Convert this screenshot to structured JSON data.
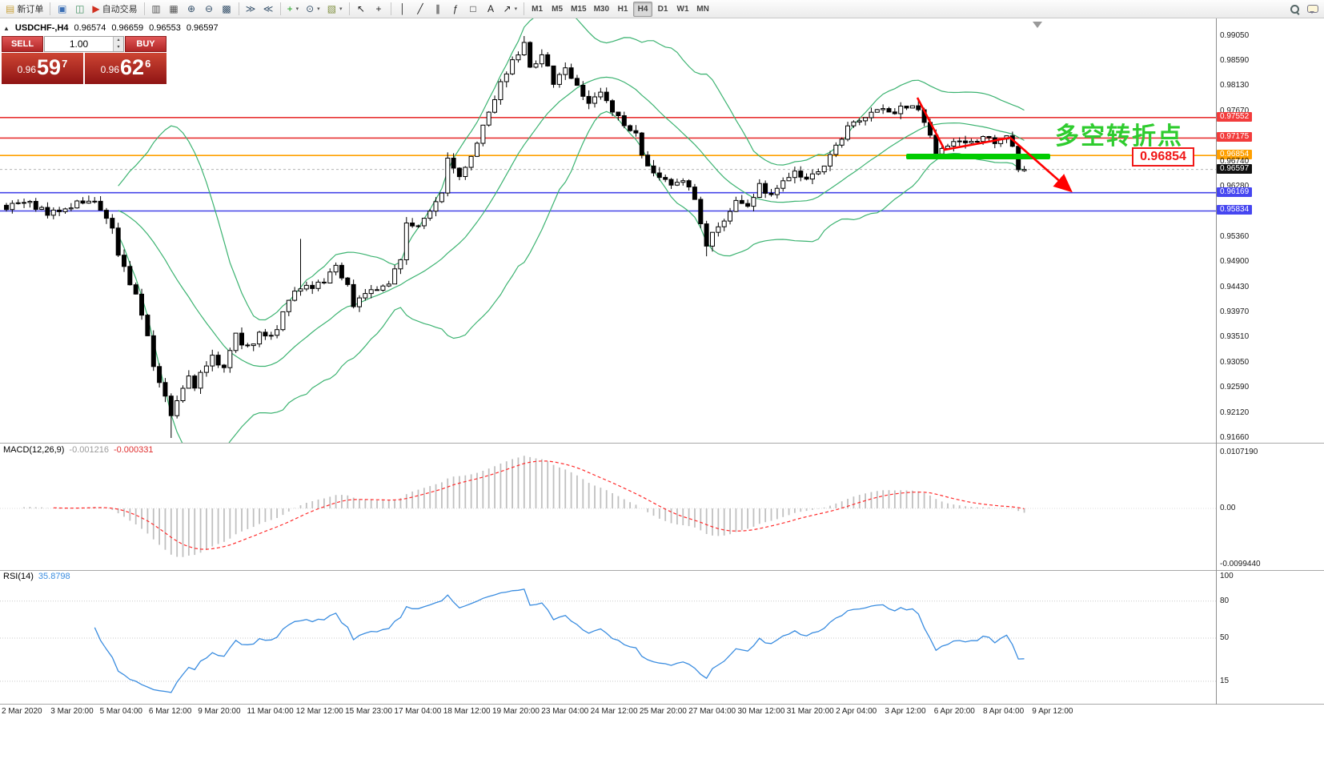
{
  "toolbar": {
    "dropdown_glyph": "▾",
    "items": [
      {
        "n": "new-order-button",
        "glyph": "▤",
        "glyph_color": "#c8a23c",
        "label": "新订单"
      },
      {
        "n": "separator"
      },
      {
        "n": "profiles-icon",
        "glyph": "▣",
        "glyph_color": "#3b6fb5"
      },
      {
        "n": "charts-stack-icon",
        "glyph": "◫",
        "glyph_color": "#3f8f5f"
      },
      {
        "n": "auto-trading-button",
        "glyph": "▶",
        "glyph_color": "#d03020",
        "label": "自动交易"
      },
      {
        "n": "separator"
      },
      {
        "n": "bars-style-icon",
        "glyph": "▥",
        "glyph_color": "#555555"
      },
      {
        "n": "candles-style-icon",
        "glyph": "▦",
        "glyph_color": "#555555"
      },
      {
        "n": "zoom-in-button",
        "glyph": "⊕",
        "glyph_color": "#35506a"
      },
      {
        "n": "zoom-out-button",
        "glyph": "⊖",
        "glyph_color": "#35506a"
      },
      {
        "n": "tile-windows-icon",
        "glyph": "▩",
        "glyph_color": "#35506a"
      },
      {
        "n": "separator"
      },
      {
        "n": "auto-scroll-icon",
        "glyph": "≫",
        "glyph_color": "#35506a"
      },
      {
        "n": "chart-shift-icon",
        "glyph": "≪",
        "glyph_color": "#35506a"
      },
      {
        "n": "separator"
      },
      {
        "n": "indicators-button",
        "glyph": "+",
        "glyph_color": "#18a018",
        "dropdown": true
      },
      {
        "n": "periods-button",
        "glyph": "⊙",
        "glyph_color": "#35506a",
        "dropdown": true
      },
      {
        "n": "templates-button",
        "glyph": "▧",
        "glyph_color": "#7f8f3f",
        "dropdown": true
      },
      {
        "n": "separator"
      },
      {
        "n": "cursor-icon",
        "glyph": "↖",
        "glyph_color": "#222222"
      },
      {
        "n": "crosshair-icon",
        "glyph": "+",
        "glyph_color": "#222222"
      },
      {
        "n": "separator"
      },
      {
        "n": "vertical-line-icon",
        "glyph": "│",
        "glyph_color": "#222222"
      },
      {
        "n": "trendline-icon",
        "glyph": "╱",
        "glyph_color": "#222222"
      },
      {
        "n": "equidistant-channel-icon",
        "glyph": "∥",
        "glyph_color": "#222222"
      },
      {
        "n": "fibonacci-icon",
        "glyph": "ƒ",
        "glyph_color": "#222222"
      },
      {
        "n": "shapes-icon",
        "glyph": "□",
        "glyph_color": "#222222"
      },
      {
        "n": "text-icon",
        "glyph": "A",
        "glyph_color": "#222222"
      },
      {
        "n": "arrows-icon",
        "glyph": "↗",
        "glyph_color": "#222222",
        "dropdown": true
      },
      {
        "n": "separator"
      },
      {
        "n": "timeframe-m1-button",
        "label": "M1",
        "tf": true
      },
      {
        "n": "timeframe-m5-button",
        "label": "M5",
        "tf": true
      },
      {
        "n": "timeframe-m15-button",
        "label": "M15",
        "tf": true
      },
      {
        "n": "timeframe-m30-button",
        "label": "M30",
        "tf": true
      },
      {
        "n": "timeframe-h1-button",
        "label": "H1",
        "tf": true
      },
      {
        "n": "timeframe-h4-button",
        "label": "H4",
        "tf": true,
        "active": true
      },
      {
        "n": "timeframe-d1-button",
        "label": "D1",
        "tf": true
      },
      {
        "n": "timeframe-w1-button",
        "label": "W1",
        "tf": true
      },
      {
        "n": "timeframe-mn-button",
        "label": "MN",
        "tf": true
      },
      {
        "n": "spacer"
      },
      {
        "n": "search-icon",
        "css_icon": "lens"
      },
      {
        "n": "chat-icon",
        "css_icon": "bubble"
      }
    ]
  },
  "symbol_header": {
    "collapse_glyph": "▲",
    "symbol": "USDCHF-,H4",
    "open": "0.96574",
    "high": "0.96659",
    "low": "0.96553",
    "close": "0.96597"
  },
  "trade_panel": {
    "sell_label": "SELL",
    "buy_label": "BUY",
    "lot": "1.00",
    "spin_up_glyph": "▴",
    "spin_down_glyph": "▾",
    "sell_price": {
      "prefix": "0.96",
      "big": "59",
      "sup": "7"
    },
    "buy_price": {
      "prefix": "0.96",
      "big": "62",
      "sup": "6"
    }
  },
  "annotations": {
    "turning_point_text": "多空转折点",
    "turning_point_color": "#2fcc2f",
    "price_callout": "0.96854",
    "callout_color": "#f01818",
    "highlight_line": {
      "x": 1132,
      "width": 180,
      "y": 169,
      "height": 7,
      "color": "#00cc00"
    },
    "red_arrow_path": [
      [
        1146,
        99
      ],
      [
        1180,
        164
      ],
      [
        1262,
        149
      ],
      [
        1336,
        214
      ]
    ],
    "red_arrow_color": "#ff0000"
  },
  "chart_data": {
    "type": "candlestick",
    "symbol": "USDCHF-",
    "timeframe": "H4",
    "current_bar": {
      "open": 0.96574,
      "high": 0.96659,
      "low": 0.96553,
      "close": 0.96597
    },
    "bid": 0.96597,
    "ask": 0.96626,
    "ylim": [
      0.9166,
      0.9905
    ],
    "bars": 174,
    "price_path": [
      [
        0,
        0.9592
      ],
      [
        3,
        0.9601
      ],
      [
        7,
        0.9578
      ],
      [
        11,
        0.9595
      ],
      [
        14,
        0.9604
      ],
      [
        16,
        0.9589
      ],
      [
        18,
        0.9552
      ],
      [
        19,
        0.9506
      ],
      [
        20,
        0.9475
      ],
      [
        21,
        0.9448
      ],
      [
        22,
        0.9424
      ],
      [
        24,
        0.936
      ],
      [
        25,
        0.93
      ],
      [
        26,
        0.9268
      ],
      [
        27,
        0.9245
      ],
      [
        28,
        0.9212
      ],
      [
        29,
        0.923
      ],
      [
        30,
        0.9258
      ],
      [
        31,
        0.9282
      ],
      [
        32,
        0.9262
      ],
      [
        33,
        0.9292
      ],
      [
        35,
        0.9312
      ],
      [
        37,
        0.93
      ],
      [
        39,
        0.9356
      ],
      [
        40,
        0.9342
      ],
      [
        42,
        0.9336
      ],
      [
        43,
        0.9358
      ],
      [
        45,
        0.9351
      ],
      [
        47,
        0.9392
      ],
      [
        48,
        0.9418
      ],
      [
        50,
        0.9445
      ],
      [
        52,
        0.944
      ],
      [
        54,
        0.9456
      ],
      [
        56,
        0.9478
      ],
      [
        58,
        0.9442
      ],
      [
        59,
        0.9402
      ],
      [
        60,
        0.9418
      ],
      [
        63,
        0.9441
      ],
      [
        65,
        0.9452
      ],
      [
        67,
        0.95
      ],
      [
        68,
        0.9558
      ],
      [
        70,
        0.9561
      ],
      [
        72,
        0.9589
      ],
      [
        74,
        0.9621
      ],
      [
        75,
        0.9676
      ],
      [
        77,
        0.9652
      ],
      [
        78,
        0.9668
      ],
      [
        80,
        0.9708
      ],
      [
        82,
        0.9762
      ],
      [
        84,
        0.9818
      ],
      [
        86,
        0.9862
      ],
      [
        88,
        0.989
      ],
      [
        89,
        0.9845
      ],
      [
        91,
        0.9868
      ],
      [
        93,
        0.9822
      ],
      [
        95,
        0.9841
      ],
      [
        97,
        0.9812
      ],
      [
        99,
        0.9782
      ],
      [
        101,
        0.9798
      ],
      [
        103,
        0.977
      ],
      [
        105,
        0.9742
      ],
      [
        107,
        0.9721
      ],
      [
        109,
        0.9664
      ],
      [
        111,
        0.9641
      ],
      [
        113,
        0.9632
      ],
      [
        115,
        0.9645
      ],
      [
        117,
        0.9601
      ],
      [
        119,
        0.9523
      ],
      [
        120,
        0.9548
      ],
      [
        122,
        0.9562
      ],
      [
        124,
        0.96
      ],
      [
        126,
        0.9592
      ],
      [
        128,
        0.9628
      ],
      [
        130,
        0.9612
      ],
      [
        132,
        0.9641
      ],
      [
        134,
        0.9652
      ],
      [
        136,
        0.9642
      ],
      [
        138,
        0.9661
      ],
      [
        140,
        0.9682
      ],
      [
        142,
        0.9718
      ],
      [
        144,
        0.9749
      ],
      [
        146,
        0.976
      ],
      [
        148,
        0.9772
      ],
      [
        150,
        0.9762
      ],
      [
        152,
        0.9771
      ],
      [
        154,
        0.9781
      ],
      [
        156,
        0.9748
      ],
      [
        157,
        0.9718
      ],
      [
        158,
        0.9691
      ],
      [
        160,
        0.9699
      ],
      [
        162,
        0.9712
      ],
      [
        164,
        0.9706
      ],
      [
        166,
        0.9716
      ],
      [
        168,
        0.9709
      ],
      [
        170,
        0.9721
      ],
      [
        171,
        0.9699
      ],
      [
        172,
        0.9663
      ],
      [
        173,
        0.96597
      ]
    ],
    "extremes": [
      {
        "bar": 28,
        "low": 0.9166
      },
      {
        "bar": 50,
        "high": 0.9532
      },
      {
        "bar": 88,
        "high": 0.9905
      },
      {
        "bar": 119,
        "low": 0.95
      },
      {
        "bar": 173,
        "o": 0.96574,
        "h": 0.96659,
        "l": 0.96553,
        "c": 0.96597
      }
    ],
    "levels": [
      {
        "price": 0.97552,
        "color": "red"
      },
      {
        "price": 0.97175,
        "color": "red"
      },
      {
        "price": 0.96854,
        "color": "orange"
      },
      {
        "price": 0.96169,
        "color": "blue"
      },
      {
        "price": 0.95834,
        "color": "blue"
      }
    ],
    "price_axis": [
      {
        "v": "0.99050",
        "t": "n"
      },
      {
        "v": "0.98590",
        "t": "n"
      },
      {
        "v": "0.98130",
        "t": "n"
      },
      {
        "v": "0.97670",
        "t": "n"
      },
      {
        "v": "0.97552",
        "t": "r"
      },
      {
        "v": "0.97175",
        "t": "r"
      },
      {
        "v": "0.96854",
        "t": "o"
      },
      {
        "v": "0.96740",
        "t": "n"
      },
      {
        "v": "0.96597",
        "t": "c"
      },
      {
        "v": "0.96280",
        "t": "n"
      },
      {
        "v": "0.96169",
        "t": "b"
      },
      {
        "v": "0.95834",
        "t": "b"
      },
      {
        "v": "0.95360",
        "t": "n"
      },
      {
        "v": "0.94900",
        "t": "n"
      },
      {
        "v": "0.94430",
        "t": "n"
      },
      {
        "v": "0.93970",
        "t": "n"
      },
      {
        "v": "0.93510",
        "t": "n"
      },
      {
        "v": "0.93050",
        "t": "n"
      },
      {
        "v": "0.92590",
        "t": "n"
      },
      {
        "v": "0.92120",
        "t": "n"
      },
      {
        "v": "0.91660",
        "t": "n"
      }
    ],
    "time_labels": [
      "2 Mar 2020",
      "3 Mar 20:00",
      "5 Mar 04:00",
      "6 Mar 12:00",
      "9 Mar 20:00",
      "11 Mar 04:00",
      "12 Mar 12:00",
      "15 Mar 23:00",
      "17 Mar 04:00",
      "18 Mar 12:00",
      "19 Mar 20:00",
      "23 Mar 04:00",
      "24 Mar 12:00",
      "25 Mar 20:00",
      "27 Mar 04:00",
      "30 Mar 12:00",
      "31 Mar 20:00",
      "2 Apr 04:00",
      "3 Apr 12:00",
      "6 Apr 20:00",
      "8 Apr 04:00",
      "9 Apr 12:00"
    ],
    "indicators": {
      "bollinger": {
        "period": 20,
        "deviation": 2,
        "color": "#3cb371"
      },
      "macd": {
        "label": "MACD(12,26,9)",
        "main_value": "-0.001216",
        "signal_value": "-0.000331",
        "axis": [
          "0.0107190",
          "0.00",
          "-0.0099440"
        ],
        "hist_color": "#c0c0c0",
        "signal_color": "#ff2a2a"
      },
      "rsi": {
        "label": "RSI(14)",
        "value": "35.8798",
        "axis": [
          "100",
          "80",
          "50",
          "15"
        ],
        "levels": [
          80,
          50,
          15
        ],
        "color": "#3b8de0"
      }
    }
  }
}
